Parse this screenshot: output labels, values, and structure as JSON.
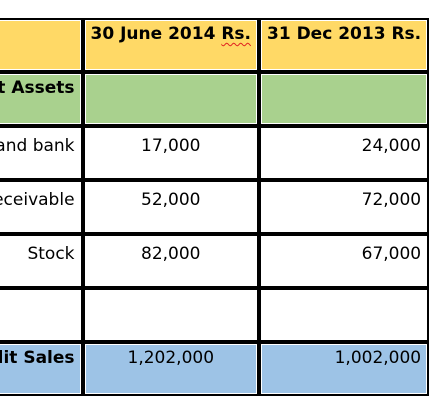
{
  "table": {
    "header": {
      "label": "",
      "col1_main": "30 June 2014 ",
      "col1_unit": "Rs.",
      "col2": "31 Dec 2013 Rs."
    },
    "section": {
      "label": "Current Assets",
      "col1": "",
      "col2": ""
    },
    "rows": [
      {
        "label": "Cash and bank",
        "col1": "17,000",
        "col2": "24,000"
      },
      {
        "label": "Account Receivable",
        "col1": "52,000",
        "col2": "72,000"
      },
      {
        "label": "Stock",
        "col1": "82,000",
        "col2": "67,000"
      }
    ],
    "blank": {
      "label": "",
      "col1": "",
      "col2": ""
    },
    "total": {
      "label": "Credit Sales",
      "col1": "1,202,000",
      "col2": "1,002,000"
    }
  },
  "colors": {
    "header_bg": "#ffd966",
    "section_bg": "#a9d18e",
    "total_bg": "#9dc3e6",
    "border": "#000000",
    "spellcheck_underline": "#e02020"
  }
}
